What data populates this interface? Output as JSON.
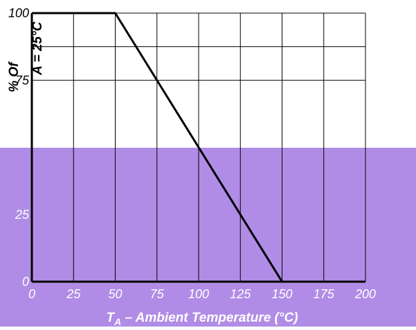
{
  "colors": {
    "band_fill": "#b08ce6",
    "curve": "#000000",
    "grid": "#000000",
    "axis_text_light": "#ffffff",
    "axis_text_dark": "#000000"
  },
  "chart_data": {
    "type": "line",
    "xlabel_main": "T",
    "xlabel_sub": "A",
    "xlabel_rest": " – Ambient Temperature (°C)",
    "ylabel_line1": "% Of",
    "ylabel_line2": "A = 25°C",
    "x_ticks": [
      "0",
      "25",
      "50",
      "75",
      "100",
      "125",
      "150",
      "175",
      "200"
    ],
    "y_ticks": [
      {
        "value": 100,
        "label": "100"
      },
      {
        "value": 75,
        "label": "75"
      },
      {
        "value": 25,
        "label": "25"
      },
      {
        "value": 0,
        "label": "0"
      }
    ],
    "xlim": [
      0,
      200
    ],
    "ylim": [
      0,
      100
    ],
    "grid": true,
    "series": [
      {
        "x": [
          0,
          50,
          150
        ],
        "y": [
          100,
          100,
          0
        ]
      }
    ]
  }
}
